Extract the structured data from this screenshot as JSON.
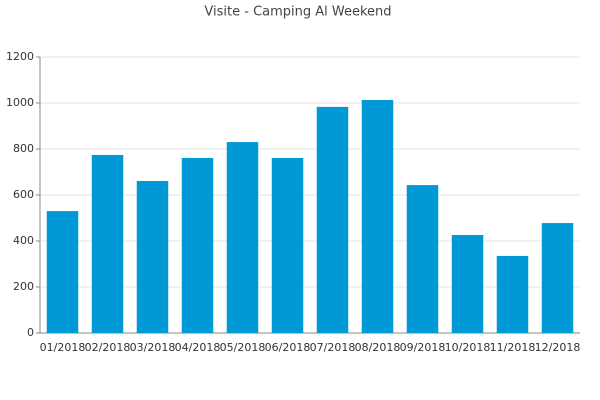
{
  "chart_data": {
    "type": "bar",
    "title": "Visite - Camping Al Weekend",
    "categories": [
      "01/2018",
      "02/2018",
      "03/2018",
      "04/2018",
      "05/2018",
      "06/2018",
      "07/2018",
      "08/2018",
      "09/2018",
      "10/2018",
      "11/2018",
      "12/2018"
    ],
    "values": [
      530,
      774,
      661,
      761,
      830,
      761,
      983,
      1013,
      643,
      426,
      335,
      478
    ],
    "color": "#0099d6",
    "ylim": [
      0,
      1200
    ],
    "yticks": [
      0,
      200,
      400,
      600,
      800,
      1000,
      1200
    ],
    "grid": true
  }
}
